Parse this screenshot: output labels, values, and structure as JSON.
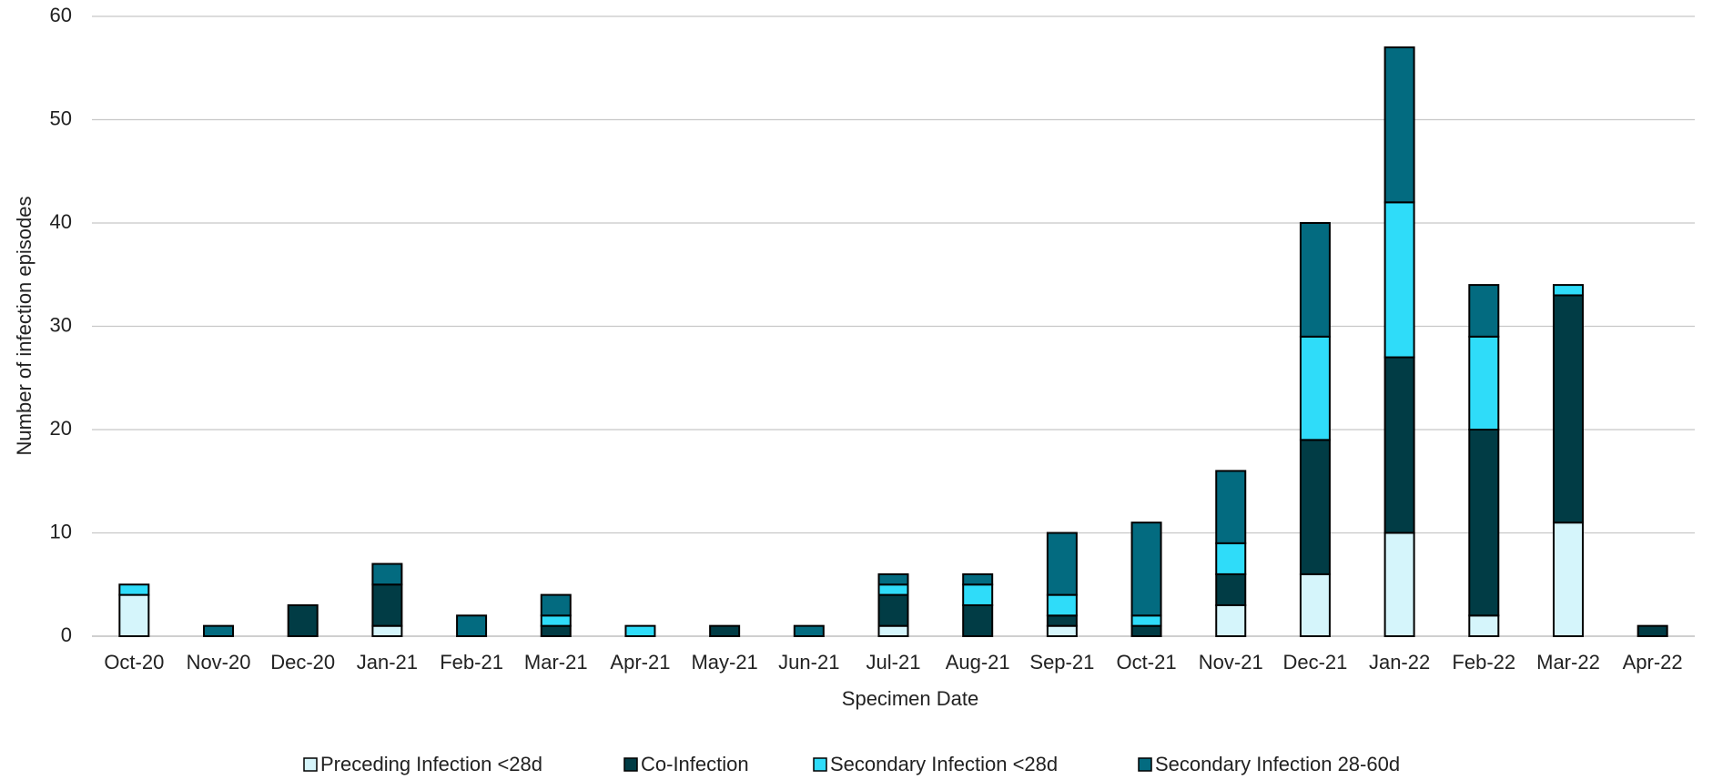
{
  "chart_data": {
    "type": "stacked_bar",
    "x_label": "Specimen Date",
    "y_label": "Number of infection episodes",
    "categories": [
      "Oct-20",
      "Nov-20",
      "Dec-20",
      "Jan-21",
      "Feb-21",
      "Mar-21",
      "Apr-21",
      "May-21",
      "Jun-21",
      "Jul-21",
      "Aug-21",
      "Sep-21",
      "Oct-21",
      "Nov-21",
      "Dec-21",
      "Jan-22",
      "Feb-22",
      "Mar-22",
      "Apr-22"
    ],
    "series": [
      {
        "name": "Preceding Infection <28d",
        "color": "#d5f5fb",
        "values": [
          4,
          0,
          0,
          1,
          0,
          0,
          0,
          0,
          0,
          1,
          0,
          1,
          0,
          3,
          6,
          10,
          2,
          11,
          0
        ]
      },
      {
        "name": "Co-Infection",
        "color": "#013c45",
        "values": [
          0,
          0,
          3,
          4,
          0,
          1,
          0,
          1,
          0,
          3,
          3,
          1,
          1,
          3,
          13,
          17,
          18,
          22,
          1
        ]
      },
      {
        "name": "Secondary Infection <28d",
        "color": "#2fdcf9",
        "values": [
          1,
          0,
          0,
          0,
          0,
          1,
          1,
          0,
          0,
          1,
          2,
          2,
          1,
          3,
          10,
          15,
          9,
          1,
          0
        ]
      },
      {
        "name": "Secondary Infection 28-60d",
        "color": "#036b80",
        "values": [
          0,
          1,
          0,
          2,
          2,
          2,
          0,
          0,
          1,
          1,
          1,
          6,
          9,
          7,
          11,
          15,
          5,
          0,
          0
        ]
      }
    ],
    "ylim": [
      0,
      60
    ],
    "yticks": [
      0,
      10,
      20,
      30,
      40,
      50,
      60
    ],
    "grid": true,
    "legend": "bottom"
  }
}
